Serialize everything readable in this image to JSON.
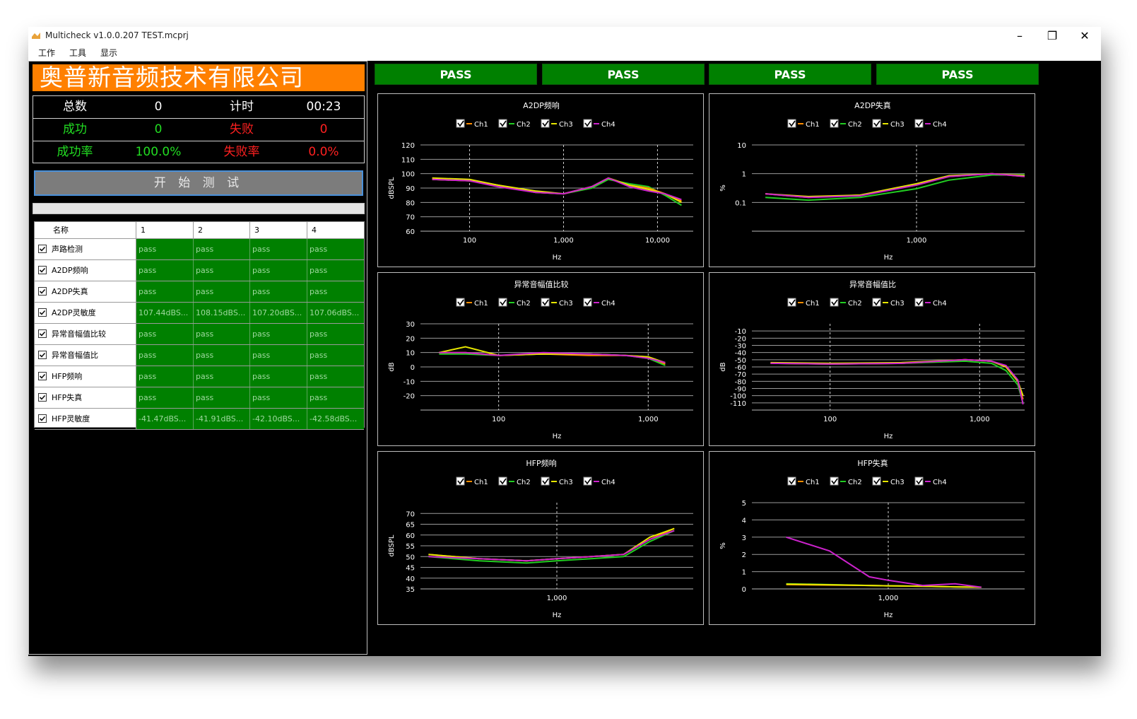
{
  "window": {
    "title": "Multicheck v1.0.0.207 TEST.mcprj",
    "controls": [
      "–",
      "❐",
      "✕"
    ]
  },
  "menu": [
    "工作",
    "工具",
    "显示"
  ],
  "company": "奥普新音频技术有限公司",
  "stats": {
    "total_label": "总数",
    "total": "0",
    "timer_label": "计时",
    "timer": "00:23",
    "success_label": "成功",
    "success": "0",
    "fail_label": "失败",
    "fail": "0",
    "success_rate_label": "成功率",
    "success_rate": "100.0%",
    "fail_rate_label": "失败率",
    "fail_rate": "0.0%"
  },
  "start_button": "开 始 测 试",
  "progress": 0,
  "grid": {
    "headers": [
      "名称",
      "1",
      "2",
      "3",
      "4"
    ],
    "rows": [
      {
        "name": "声路检测",
        "results": [
          "pass",
          "pass",
          "pass",
          "pass"
        ]
      },
      {
        "name": "A2DP频响",
        "results": [
          "pass",
          "pass",
          "pass",
          "pass"
        ]
      },
      {
        "name": "A2DP失真",
        "results": [
          "pass",
          "pass",
          "pass",
          "pass"
        ]
      },
      {
        "name": "A2DP灵敏度",
        "results": [
          "107.44dBS...",
          "108.15dBS...",
          "107.20dBS...",
          "107.06dBS..."
        ]
      },
      {
        "name": "异常音幅值比较",
        "results": [
          "pass",
          "pass",
          "pass",
          "pass"
        ]
      },
      {
        "name": "异常音幅值比",
        "results": [
          "pass",
          "pass",
          "pass",
          "pass"
        ]
      },
      {
        "name": "HFP频响",
        "results": [
          "pass",
          "pass",
          "pass",
          "pass"
        ]
      },
      {
        "name": "HFP失真",
        "results": [
          "pass",
          "pass",
          "pass",
          "pass"
        ]
      },
      {
        "name": "HFP灵敏度",
        "results": [
          "-41.47dBS...",
          "-41.91dBS...",
          "-42.10dBS...",
          "-42.58dBS..."
        ]
      }
    ]
  },
  "pass_banners": [
    "PASS",
    "PASS",
    "PASS",
    "PASS"
  ],
  "colors": {
    "ch1": "#ff8c00",
    "ch2": "#22cc22",
    "ch3": "#e6e600",
    "ch4": "#cc22cc",
    "pass_green": "#008000",
    "accent_orange": "#ff8000"
  },
  "chart_data": [
    {
      "type": "line",
      "title": "A2DP频响",
      "xlabel": "Hz",
      "ylabel": "dBSPL",
      "legend": [
        "Ch1",
        "Ch2",
        "Ch3",
        "Ch4"
      ],
      "legend_position": "top",
      "xscale": "log",
      "xlim": [
        30,
        24000
      ],
      "ylim": [
        60,
        120
      ],
      "yticks": [
        "120",
        "110",
        "100",
        "90",
        "80",
        "70",
        "60"
      ],
      "xticks": [
        "100",
        "1,000",
        "10,000"
      ],
      "x": [
        40,
        100,
        200,
        500,
        1000,
        2000,
        3000,
        5000,
        8000,
        12000,
        18000
      ],
      "series": [
        {
          "values": [
            96,
            95,
            92,
            87,
            86,
            91,
            97,
            92,
            90,
            86,
            81
          ]
        },
        {
          "values": [
            96,
            95,
            92,
            87,
            86,
            90,
            96,
            93,
            91,
            85,
            78
          ]
        },
        {
          "values": [
            97,
            96,
            92,
            88,
            86,
            91,
            97,
            92,
            89,
            86,
            80
          ]
        },
        {
          "values": [
            96,
            95,
            91,
            87,
            86,
            91,
            97,
            91,
            88,
            86,
            82
          ]
        }
      ]
    },
    {
      "type": "line",
      "title": "A2DP失真",
      "xlabel": "Hz",
      "ylabel": "%",
      "legend": [
        "Ch1",
        "Ch2",
        "Ch3",
        "Ch4"
      ],
      "legend_position": "top",
      "xscale": "log",
      "xlim": [
        30,
        10000
      ],
      "ylim": [
        0.01,
        10
      ],
      "yticks": [
        "10",
        "1",
        "0.1"
      ],
      "xticks": [
        "1,000"
      ],
      "x": [
        40,
        100,
        300,
        1000,
        2000,
        5000,
        10000
      ],
      "series": [
        {
          "values": [
            0.2,
            0.15,
            0.18,
            0.4,
            0.8,
            1.0,
            0.8
          ]
        },
        {
          "values": [
            0.15,
            0.12,
            0.15,
            0.3,
            0.6,
            0.9,
            0.9
          ]
        },
        {
          "values": [
            0.2,
            0.16,
            0.18,
            0.45,
            0.85,
            1.0,
            0.85
          ]
        },
        {
          "values": [
            0.2,
            0.15,
            0.17,
            0.4,
            0.8,
            1.0,
            0.8
          ]
        }
      ]
    },
    {
      "type": "line",
      "title": "异常音幅值比较",
      "xlabel": "Hz",
      "ylabel": "dB",
      "legend": [
        "Ch1",
        "Ch2",
        "Ch3",
        "Ch4"
      ],
      "legend_position": "top",
      "xscale": "log",
      "xlim": [
        30,
        2000
      ],
      "ylim": [
        -30,
        30
      ],
      "yticks": [
        "30",
        "20",
        "10",
        "0",
        "-10",
        "-20"
      ],
      "xticks": [
        "100",
        "1,000"
      ],
      "x": [
        40,
        60,
        100,
        200,
        400,
        700,
        1000,
        1300
      ],
      "series": [
        {
          "values": [
            10,
            10,
            8,
            9,
            8,
            8,
            7,
            2
          ]
        },
        {
          "values": [
            9,
            9,
            8,
            9,
            9,
            8,
            6,
            1
          ]
        },
        {
          "values": [
            10,
            14,
            8,
            9,
            9,
            8,
            7,
            3
          ]
        },
        {
          "values": [
            10,
            10,
            8,
            10,
            9,
            8,
            6,
            3
          ]
        }
      ]
    },
    {
      "type": "line",
      "title": "异常音幅值比",
      "xlabel": "Hz",
      "ylabel": "dB",
      "legend": [
        "Ch1",
        "Ch2",
        "Ch3",
        "Ch4"
      ],
      "legend_position": "top",
      "xscale": "log",
      "xlim": [
        30,
        2000
      ],
      "ylim": [
        -120,
        0
      ],
      "yticks": [
        "-10",
        "-20",
        "-30",
        "-40",
        "-50",
        "-60",
        "-70",
        "-80",
        "-90",
        "-100",
        "-110"
      ],
      "xticks": [
        "100",
        "1,000"
      ],
      "x": [
        40,
        100,
        300,
        800,
        1200,
        1500,
        1800,
        1950
      ],
      "series": [
        {
          "values": [
            -55,
            -56,
            -55,
            -50,
            -52,
            -60,
            -80,
            -105
          ]
        },
        {
          "values": [
            -55,
            -56,
            -55,
            -52,
            -55,
            -65,
            -85,
            -110
          ]
        },
        {
          "values": [
            -54,
            -55,
            -54,
            -50,
            -52,
            -60,
            -80,
            -100
          ]
        },
        {
          "values": [
            -55,
            -56,
            -55,
            -50,
            -52,
            -58,
            -78,
            -112
          ]
        }
      ]
    },
    {
      "type": "line",
      "title": "HFP频响",
      "xlabel": "Hz",
      "ylabel": "dBSPL",
      "legend": [
        "Ch1",
        "Ch2",
        "Ch3",
        "Ch4"
      ],
      "legend_position": "top",
      "xscale": "log",
      "xlim": [
        200,
        5000
      ],
      "ylim": [
        35,
        75
      ],
      "yticks": [
        "70",
        "65",
        "60",
        "55",
        "50",
        "45",
        "40",
        "35"
      ],
      "xticks": [
        "1,000"
      ],
      "x": [
        220,
        400,
        700,
        1000,
        1500,
        2200,
        3000,
        4000
      ],
      "series": [
        {
          "values": [
            51,
            49,
            48,
            49,
            50,
            51,
            58,
            63
          ]
        },
        {
          "values": [
            50,
            48,
            47,
            48,
            49,
            50,
            57,
            62
          ]
        },
        {
          "values": [
            51,
            49,
            48,
            49,
            50,
            51,
            59,
            63
          ]
        },
        {
          "values": [
            50,
            49,
            48,
            49,
            50,
            51,
            58,
            62
          ]
        }
      ]
    },
    {
      "type": "line",
      "title": "HFP失真",
      "xlabel": "Hz",
      "ylabel": "%",
      "legend": [
        "Ch1",
        "Ch2",
        "Ch3",
        "Ch4"
      ],
      "legend_position": "top",
      "xscale": "log",
      "xlim": [
        200,
        5000
      ],
      "ylim": [
        0,
        5
      ],
      "yticks": [
        "5",
        "4",
        "3",
        "2",
        "1",
        "0"
      ],
      "xticks": [
        "1,000"
      ],
      "x": [
        300,
        500,
        800,
        1000,
        1500,
        2200,
        3000
      ],
      "series": [
        {
          "values": [
            0.25,
            0.22,
            0.2,
            0.18,
            0.15,
            0.12,
            0.1
          ]
        },
        {
          "values": [
            0.3,
            0.25,
            0.2,
            0.18,
            0.15,
            0.12,
            0.1
          ]
        },
        {
          "values": [
            0.28,
            0.24,
            0.2,
            0.18,
            0.15,
            0.12,
            0.1
          ]
        },
        {
          "values": [
            3.0,
            2.2,
            0.7,
            0.5,
            0.2,
            0.3,
            0.1
          ]
        }
      ]
    }
  ]
}
